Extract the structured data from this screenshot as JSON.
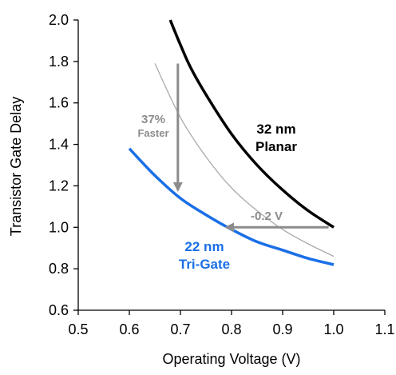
{
  "chart_data": {
    "type": "line",
    "title": "",
    "xlabel": "Operating Voltage (V)",
    "ylabel": "Transistor  Gate Delay",
    "xlim": [
      0.5,
      1.1
    ],
    "ylim": [
      0.6,
      2.0
    ],
    "xticks": [
      "0.5",
      "0.6",
      "0.7",
      "0.8",
      "0.9",
      "1.0",
      "1.1"
    ],
    "yticks": [
      "0.6",
      "0.8",
      "1.0",
      "1.2",
      "1.4",
      "1.6",
      "1.8",
      "2.0"
    ],
    "grid": false,
    "series": [
      {
        "name": "32 nm Planar",
        "color": "#000000",
        "width": "thick",
        "x": [
          0.68,
          0.7,
          0.72,
          0.75,
          0.8,
          0.85,
          0.9,
          0.95,
          1.0
        ],
        "y": [
          2.0,
          1.88,
          1.77,
          1.64,
          1.45,
          1.3,
          1.18,
          1.08,
          1.0
        ]
      },
      {
        "name": "",
        "color": "#aaaaaa",
        "width": "thin",
        "x": [
          0.65,
          0.7,
          0.75,
          0.8,
          0.85,
          0.9,
          0.95,
          1.0
        ],
        "y": [
          1.79,
          1.53,
          1.34,
          1.19,
          1.08,
          0.99,
          0.92,
          0.86
        ]
      },
      {
        "name": "22 nm Tri-Gate",
        "color": "#1a6fe6",
        "width": "thick",
        "x": [
          0.6,
          0.65,
          0.7,
          0.75,
          0.8,
          0.85,
          0.9,
          0.95,
          1.0
        ],
        "y": [
          1.38,
          1.25,
          1.14,
          1.06,
          0.99,
          0.93,
          0.89,
          0.85,
          0.82
        ]
      }
    ],
    "annotations": [
      {
        "label_lines": [
          "32 nm",
          "Planar"
        ],
        "color": "#000000"
      },
      {
        "label_lines": [
          "22 nm",
          "Tri-Gate"
        ],
        "color": "#1a6fe6"
      },
      {
        "label_lines": [
          "37%",
          "Faster"
        ],
        "color": "#8c8c8c",
        "arrow": {
          "from": [
            0.695,
            1.79
          ],
          "to": [
            0.695,
            1.18
          ]
        }
      },
      {
        "label_lines": [
          "-0.2 V"
        ],
        "color": "#8c8c8c",
        "arrow": {
          "from": [
            0.99,
            1.0
          ],
          "to": [
            0.79,
            1.0
          ]
        }
      }
    ]
  }
}
